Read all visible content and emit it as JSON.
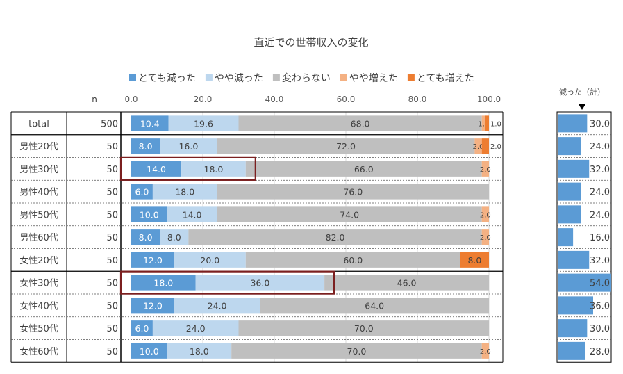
{
  "chart_data": {
    "type": "bar",
    "stacked": true,
    "orientation": "horizontal",
    "title": "直近での世帯収入の変化",
    "xlim": [
      0,
      100
    ],
    "x_ticks": [
      "0.0",
      "20.0",
      "40.0",
      "60.0",
      "80.0",
      "100.0"
    ],
    "n_header": "n",
    "legend_position": "top",
    "categories": [
      "total",
      "男性20代",
      "男性30代",
      "男性40代",
      "男性50代",
      "男性60代",
      "女性20代",
      "女性30代",
      "女性40代",
      "女性50代",
      "女性60代"
    ],
    "n_values": [
      500,
      50,
      50,
      50,
      50,
      50,
      50,
      50,
      50,
      50,
      50
    ],
    "series": [
      {
        "name": "とても減った",
        "color": "#5B9BD5",
        "values": [
          10.4,
          8.0,
          14.0,
          6.0,
          10.0,
          8.0,
          12.0,
          18.0,
          12.0,
          6.0,
          10.0
        ]
      },
      {
        "name": "やや減った",
        "color": "#BDD7EE",
        "values": [
          19.6,
          16.0,
          18.0,
          18.0,
          14.0,
          8.0,
          20.0,
          36.0,
          24.0,
          24.0,
          18.0
        ]
      },
      {
        "name": "変わらない",
        "color": "#BFBFBF",
        "values": [
          68.0,
          72.0,
          66.0,
          76.0,
          74.0,
          82.0,
          60.0,
          46.0,
          64.0,
          70.0,
          70.0
        ]
      },
      {
        "name": "やや増えた",
        "color": "#F4B183",
        "values": [
          1.0,
          2.0,
          2.0,
          0,
          2.0,
          2.0,
          0,
          0,
          0,
          0,
          2.0
        ]
      },
      {
        "name": "とても増えた",
        "color": "#ED7D31",
        "values": [
          1.0,
          2.0,
          0,
          0,
          0,
          0,
          8.0,
          0,
          0,
          0,
          0
        ]
      }
    ],
    "highlighted_categories": [
      "男性30代",
      "女性30代"
    ],
    "highlight_color": "#7B1F1F",
    "side_panel": {
      "title": "減った（計）",
      "color": "#5B9BD5",
      "values": [
        30.0,
        24.0,
        32.0,
        24.0,
        24.0,
        16.0,
        32.0,
        54.0,
        36.0,
        30.0,
        28.0
      ],
      "max": 54.0
    }
  }
}
